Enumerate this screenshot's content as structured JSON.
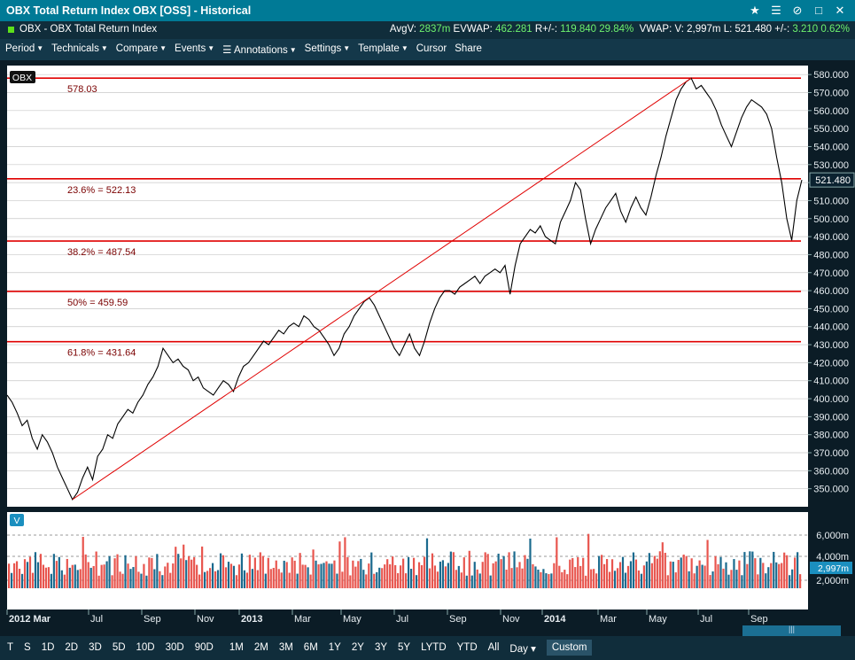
{
  "window": {
    "title": "OBX Total Return Index OBX [OSS] - Historical"
  },
  "info": {
    "instrument": "OBX - OBX Total Return Index",
    "avgv_label": "AvgV:",
    "avgv": "2837m",
    "evwap_label": "EVWAP:",
    "evwap": "462.281",
    "r_label": "R+/-:",
    "r_value": "119.840",
    "r_pct": "29.84%",
    "vwap_label": "VWAP:",
    "v_label": "V:",
    "v_value": "2,997m",
    "l_label": "L:",
    "l_value": "521.480",
    "pm_label": "+/-:",
    "pm_value": "3.210",
    "pm_pct": "0.62%"
  },
  "menu": [
    "Period",
    "Technicals",
    "Compare",
    "Events",
    "Annotations",
    "Settings",
    "Template",
    "Cursor",
    "Share"
  ],
  "bottom": {
    "periods": [
      "T",
      "S",
      "1D",
      "2D",
      "3D",
      "5D",
      "10D",
      "30D",
      "90D",
      "1M",
      "2M",
      "3M",
      "6M",
      "1Y",
      "2Y",
      "3Y",
      "5Y",
      "LYTD",
      "YTD",
      "All"
    ],
    "interval": "Day",
    "custom": "Custom"
  },
  "chart_data": {
    "type": "line",
    "symbol_badge": "OBX",
    "volume_badge": "V",
    "price_axis": {
      "min": 340,
      "max": 585,
      "ticks": [
        350,
        360,
        370,
        380,
        390,
        400,
        410,
        420,
        430,
        440,
        450,
        460,
        470,
        480,
        490,
        500,
        510,
        520,
        530,
        540,
        550,
        560,
        570,
        580
      ]
    },
    "volume_axis": {
      "ticks": [
        "2,000m",
        "4,000m",
        "6,000m"
      ],
      "current": "2,997m"
    },
    "last_price": "521.480",
    "x_labels": [
      "2012 Mar",
      "Jul",
      "Sep",
      "Nov",
      "2013",
      "Mar",
      "May",
      "Jul",
      "Sep",
      "Nov",
      "2014",
      "Mar",
      "May",
      "Jul",
      "Sep"
    ],
    "fibonacci": [
      {
        "label": "578.03",
        "value": 578.03
      },
      {
        "label": "23.6% = 522.13",
        "value": 522.13
      },
      {
        "label": "38.2% = 487.54",
        "value": 487.54
      },
      {
        "label": "50% = 459.59",
        "value": 459.59
      },
      {
        "label": "61.8% = 431.64",
        "value": 431.64
      }
    ],
    "trendline": {
      "from": {
        "date": "2012-06",
        "value": 344
      },
      "to": {
        "date": "2014-06",
        "value": 580
      }
    },
    "series": [
      {
        "values": [
          402,
          398,
          392,
          385,
          388,
          378,
          372,
          380,
          376,
          370,
          362,
          356,
          350,
          344,
          348,
          356,
          362,
          355,
          368,
          372,
          380,
          378,
          386,
          390,
          394,
          392,
          398,
          402,
          408,
          412,
          418,
          428,
          424,
          420,
          422,
          418,
          416,
          410,
          412,
          406,
          404,
          402,
          406,
          410,
          408,
          404,
          412,
          418,
          420,
          424,
          428,
          432,
          430,
          434,
          438,
          436,
          440,
          442,
          440,
          446,
          444,
          440,
          438,
          434,
          430,
          424,
          428,
          436,
          440,
          446,
          450,
          454,
          456,
          452,
          446,
          440,
          434,
          428,
          424,
          430,
          436,
          428,
          424,
          432,
          442,
          450,
          456,
          460,
          460,
          458,
          462,
          464,
          466,
          468,
          464,
          468,
          470,
          472,
          470,
          474,
          458,
          474,
          486,
          490,
          494,
          492,
          496,
          490,
          488,
          486,
          498,
          504,
          510,
          520,
          516,
          500,
          486,
          494,
          500,
          506,
          510,
          514,
          504,
          498,
          506,
          512,
          506,
          502,
          512,
          524,
          534,
          546,
          556,
          566,
          572,
          576,
          578,
          572,
          574,
          570,
          566,
          560,
          552,
          546,
          540,
          548,
          556,
          562,
          566,
          564,
          562,
          558,
          550,
          534,
          520,
          500,
          488,
          510,
          521.48
        ]
      },
      {
        "volume_colors": [
          "#e8554e",
          "#1b6a8e"
        ]
      }
    ]
  }
}
